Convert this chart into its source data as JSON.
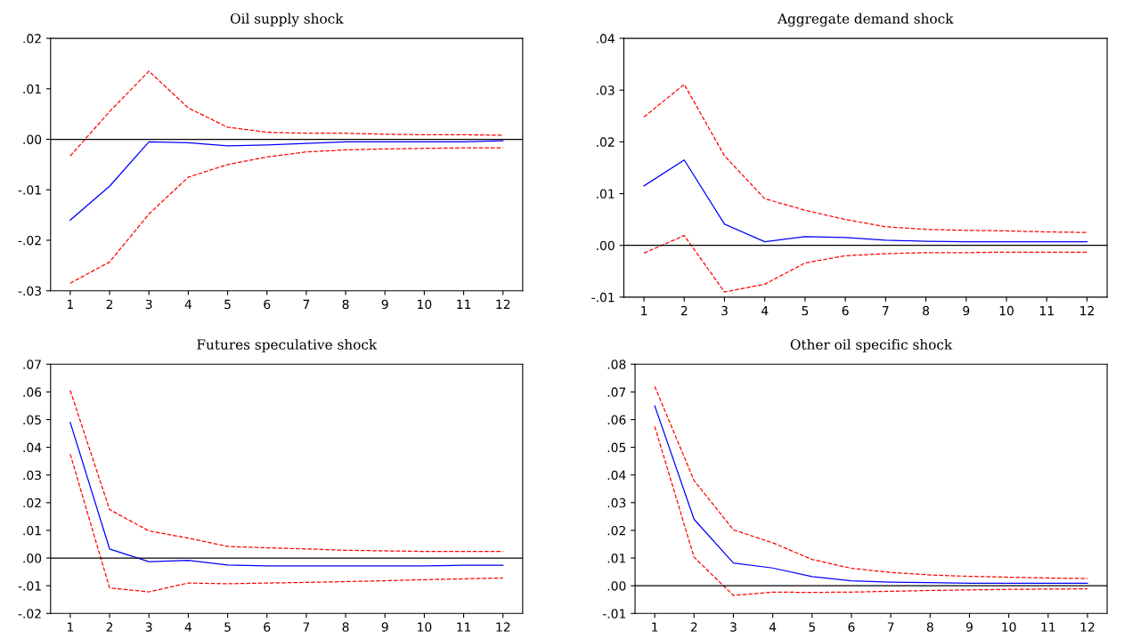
{
  "chart_data": [
    {
      "type": "line",
      "title": "Oil supply shock",
      "categories": [
        "1",
        "2",
        "3",
        "4",
        "5",
        "6",
        "7",
        "8",
        "9",
        "10",
        "11",
        "12"
      ],
      "ylim": [
        -0.03,
        0.02
      ],
      "yticks": [
        {
          "value": -0.03,
          "label": "-.03"
        },
        {
          "value": -0.02,
          "label": "-.02"
        },
        {
          "value": -0.01,
          "label": "-.01"
        },
        {
          "value": 0,
          "label": ".00"
        },
        {
          "value": 0.01,
          "label": ".01"
        },
        {
          "value": 0.02,
          "label": ".02"
        }
      ],
      "grid": false,
      "legend": false,
      "ref_lines": [
        {
          "axis": "y",
          "value": 0,
          "color": "#000000",
          "line_style": "solid"
        }
      ],
      "series": [
        {
          "color": "#0000ff",
          "line_style": "solid",
          "values": [
            -0.016,
            -0.0093,
            -0.0005,
            -0.0007,
            -0.0013,
            -0.0011,
            -0.0008,
            -0.0005,
            -0.0005,
            -0.0005,
            -0.0005,
            -0.0003
          ]
        },
        {
          "color": "#ff0000",
          "line_style": "dashed",
          "values": [
            -0.0033,
            0.0055,
            0.0135,
            0.0062,
            0.0024,
            0.0014,
            0.0012,
            0.0012,
            0.001,
            0.0009,
            0.0009,
            0.0008
          ]
        },
        {
          "color": "#ff0000",
          "line_style": "dashed",
          "values": [
            -0.0285,
            -0.0243,
            -0.0148,
            -0.0075,
            -0.005,
            -0.0035,
            -0.0025,
            -0.0021,
            -0.0019,
            -0.0018,
            -0.0017,
            -0.0017
          ]
        }
      ]
    },
    {
      "type": "line",
      "title": "Aggregate demand shock",
      "categories": [
        "1",
        "2",
        "3",
        "4",
        "5",
        "6",
        "7",
        "8",
        "9",
        "10",
        "11",
        "12"
      ],
      "ylim": [
        -0.01,
        0.04
      ],
      "yticks": [
        {
          "value": -0.01,
          "label": "-.01"
        },
        {
          "value": 0,
          "label": ".00"
        },
        {
          "value": 0.01,
          "label": ".01"
        },
        {
          "value": 0.02,
          "label": ".02"
        },
        {
          "value": 0.03,
          "label": ".03"
        },
        {
          "value": 0.04,
          "label": ".04"
        }
      ],
      "grid": false,
      "legend": false,
      "ref_lines": [
        {
          "axis": "y",
          "value": 0,
          "color": "#000000",
          "line_style": "solid"
        }
      ],
      "series": [
        {
          "color": "#0000ff",
          "line_style": "solid",
          "values": [
            0.0115,
            0.0165,
            0.0041,
            0.0007,
            0.0017,
            0.0015,
            0.001,
            0.0008,
            0.0007,
            0.0007,
            0.0007,
            0.0007
          ]
        },
        {
          "color": "#ff0000",
          "line_style": "dashed",
          "values": [
            0.0248,
            0.0311,
            0.0173,
            0.009,
            0.0068,
            0.005,
            0.0036,
            0.0031,
            0.0029,
            0.0028,
            0.0026,
            0.0025
          ]
        },
        {
          "color": "#ff0000",
          "line_style": "dashed",
          "values": [
            -0.0015,
            0.0019,
            -0.009,
            -0.0075,
            -0.0034,
            -0.002,
            -0.0016,
            -0.0014,
            -0.0014,
            -0.0013,
            -0.0013,
            -0.0013
          ]
        }
      ]
    },
    {
      "type": "line",
      "title": "Futures speculative shock",
      "categories": [
        "1",
        "2",
        "3",
        "4",
        "5",
        "6",
        "7",
        "8",
        "9",
        "10",
        "11",
        "12"
      ],
      "ylim": [
        -0.02,
        0.07
      ],
      "yticks": [
        {
          "value": -0.02,
          "label": "-.02"
        },
        {
          "value": -0.01,
          "label": "-.01"
        },
        {
          "value": 0,
          "label": ".00"
        },
        {
          "value": 0.01,
          "label": ".01"
        },
        {
          "value": 0.02,
          "label": ".02"
        },
        {
          "value": 0.03,
          "label": ".03"
        },
        {
          "value": 0.04,
          "label": ".04"
        },
        {
          "value": 0.05,
          "label": ".05"
        },
        {
          "value": 0.06,
          "label": ".06"
        },
        {
          "value": 0.07,
          "label": ".07"
        }
      ],
      "grid": false,
      "legend": false,
      "ref_lines": [
        {
          "axis": "y",
          "value": 0,
          "color": "#000000",
          "line_style": "solid"
        }
      ],
      "series": [
        {
          "color": "#0000ff",
          "line_style": "solid",
          "values": [
            0.049,
            0.0033,
            -0.0013,
            -0.0008,
            -0.0025,
            -0.0028,
            -0.0028,
            -0.0028,
            -0.0028,
            -0.0028,
            -0.0026,
            -0.0026
          ]
        },
        {
          "color": "#ff0000",
          "line_style": "dashed",
          "values": [
            0.0605,
            0.0175,
            0.0098,
            0.0072,
            0.0042,
            0.0037,
            0.0033,
            0.0028,
            0.0026,
            0.0024,
            0.0024,
            0.0024
          ]
        },
        {
          "color": "#ff0000",
          "line_style": "dashed",
          "values": [
            0.0375,
            -0.0108,
            -0.0122,
            -0.009,
            -0.0093,
            -0.009,
            -0.0088,
            -0.0085,
            -0.0082,
            -0.0078,
            -0.0075,
            -0.0072
          ]
        }
      ]
    },
    {
      "type": "line",
      "title": "Other oil specific shock",
      "categories": [
        "1",
        "2",
        "3",
        "4",
        "5",
        "6",
        "7",
        "8",
        "9",
        "10",
        "11",
        "12"
      ],
      "ylim": [
        -0.01,
        0.08
      ],
      "yticks": [
        {
          "value": -0.01,
          "label": "-.01"
        },
        {
          "value": 0,
          "label": ".00"
        },
        {
          "value": 0.01,
          "label": ".01"
        },
        {
          "value": 0.02,
          "label": ".02"
        },
        {
          "value": 0.03,
          "label": ".03"
        },
        {
          "value": 0.04,
          "label": ".04"
        },
        {
          "value": 0.05,
          "label": ".05"
        },
        {
          "value": 0.06,
          "label": ".06"
        },
        {
          "value": 0.07,
          "label": ".07"
        },
        {
          "value": 0.08,
          "label": ".08"
        }
      ],
      "grid": false,
      "legend": false,
      "ref_lines": [
        {
          "axis": "y",
          "value": 0,
          "color": "#000000",
          "line_style": "solid"
        }
      ],
      "series": [
        {
          "color": "#0000ff",
          "line_style": "solid",
          "values": [
            0.065,
            0.024,
            0.0082,
            0.0064,
            0.0033,
            0.0018,
            0.0013,
            0.0011,
            0.0009,
            0.0009,
            0.0009,
            0.0009
          ]
        },
        {
          "color": "#ff0000",
          "line_style": "dashed",
          "values": [
            0.072,
            0.038,
            0.0202,
            0.0155,
            0.0095,
            0.0063,
            0.0048,
            0.0039,
            0.0034,
            0.0031,
            0.0028,
            0.0026
          ]
        },
        {
          "color": "#ff0000",
          "line_style": "dashed",
          "values": [
            0.0575,
            0.0103,
            -0.0035,
            -0.0023,
            -0.0024,
            -0.0023,
            -0.002,
            -0.0017,
            -0.0015,
            -0.0013,
            -0.0012,
            -0.0011
          ]
        }
      ]
    }
  ]
}
